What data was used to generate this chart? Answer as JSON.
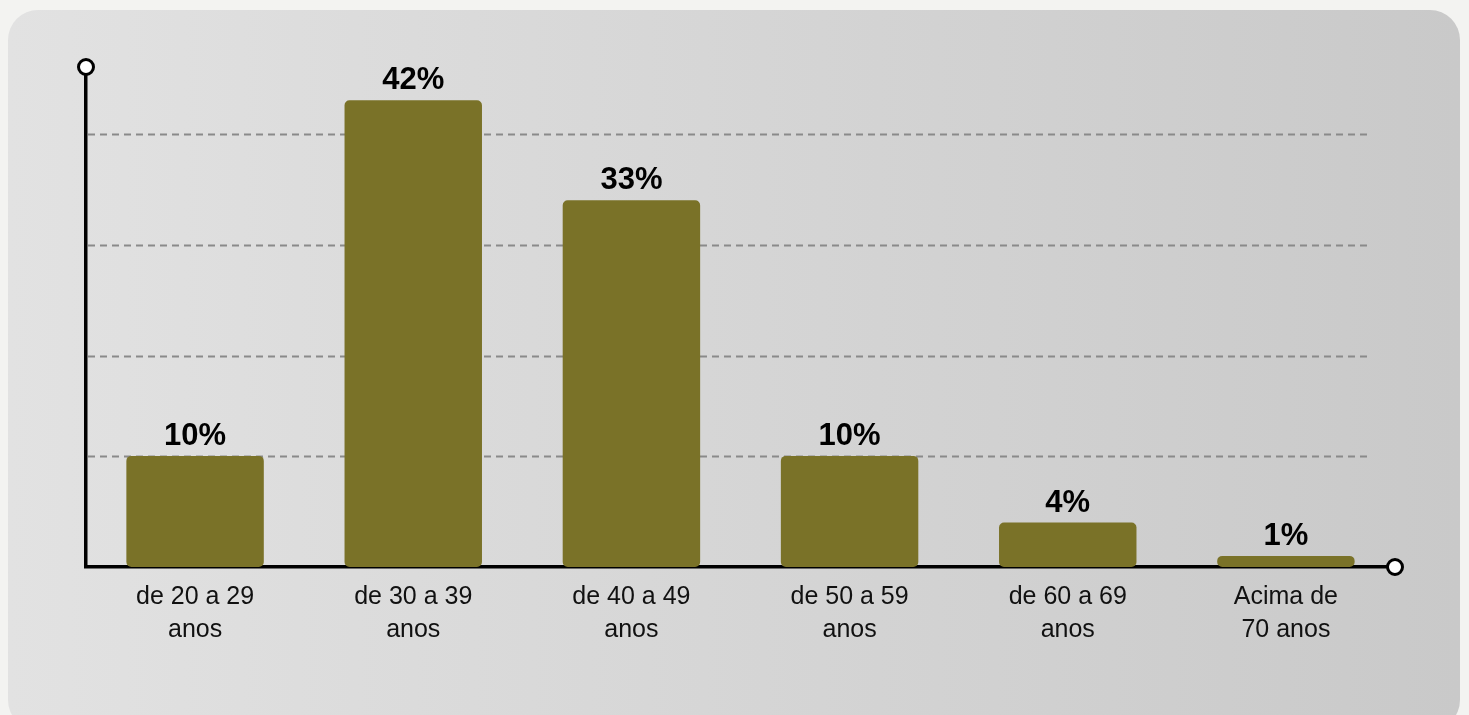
{
  "chart_data": {
    "type": "bar",
    "categories": [
      "de 20 a 29 anos",
      "de 30 a 39 anos",
      "de 40 a 49 anos",
      "de 50 a 59 anos",
      "de 60 a 69 anos",
      "Acima de 70 anos"
    ],
    "values": [
      10,
      42,
      33,
      10,
      4,
      1
    ],
    "value_labels": [
      "10%",
      "42%",
      "33%",
      "10%",
      "4%",
      "1%"
    ],
    "color": "#7a7228",
    "yticks": [
      {
        "value": 10,
        "label": null
      },
      {
        "value": 19,
        "label": null
      },
      {
        "value": 29,
        "label": null
      },
      {
        "value": 39,
        "label": null
      }
    ],
    "tick_labels": "x",
    "grid": "y",
    "legend": false
  }
}
